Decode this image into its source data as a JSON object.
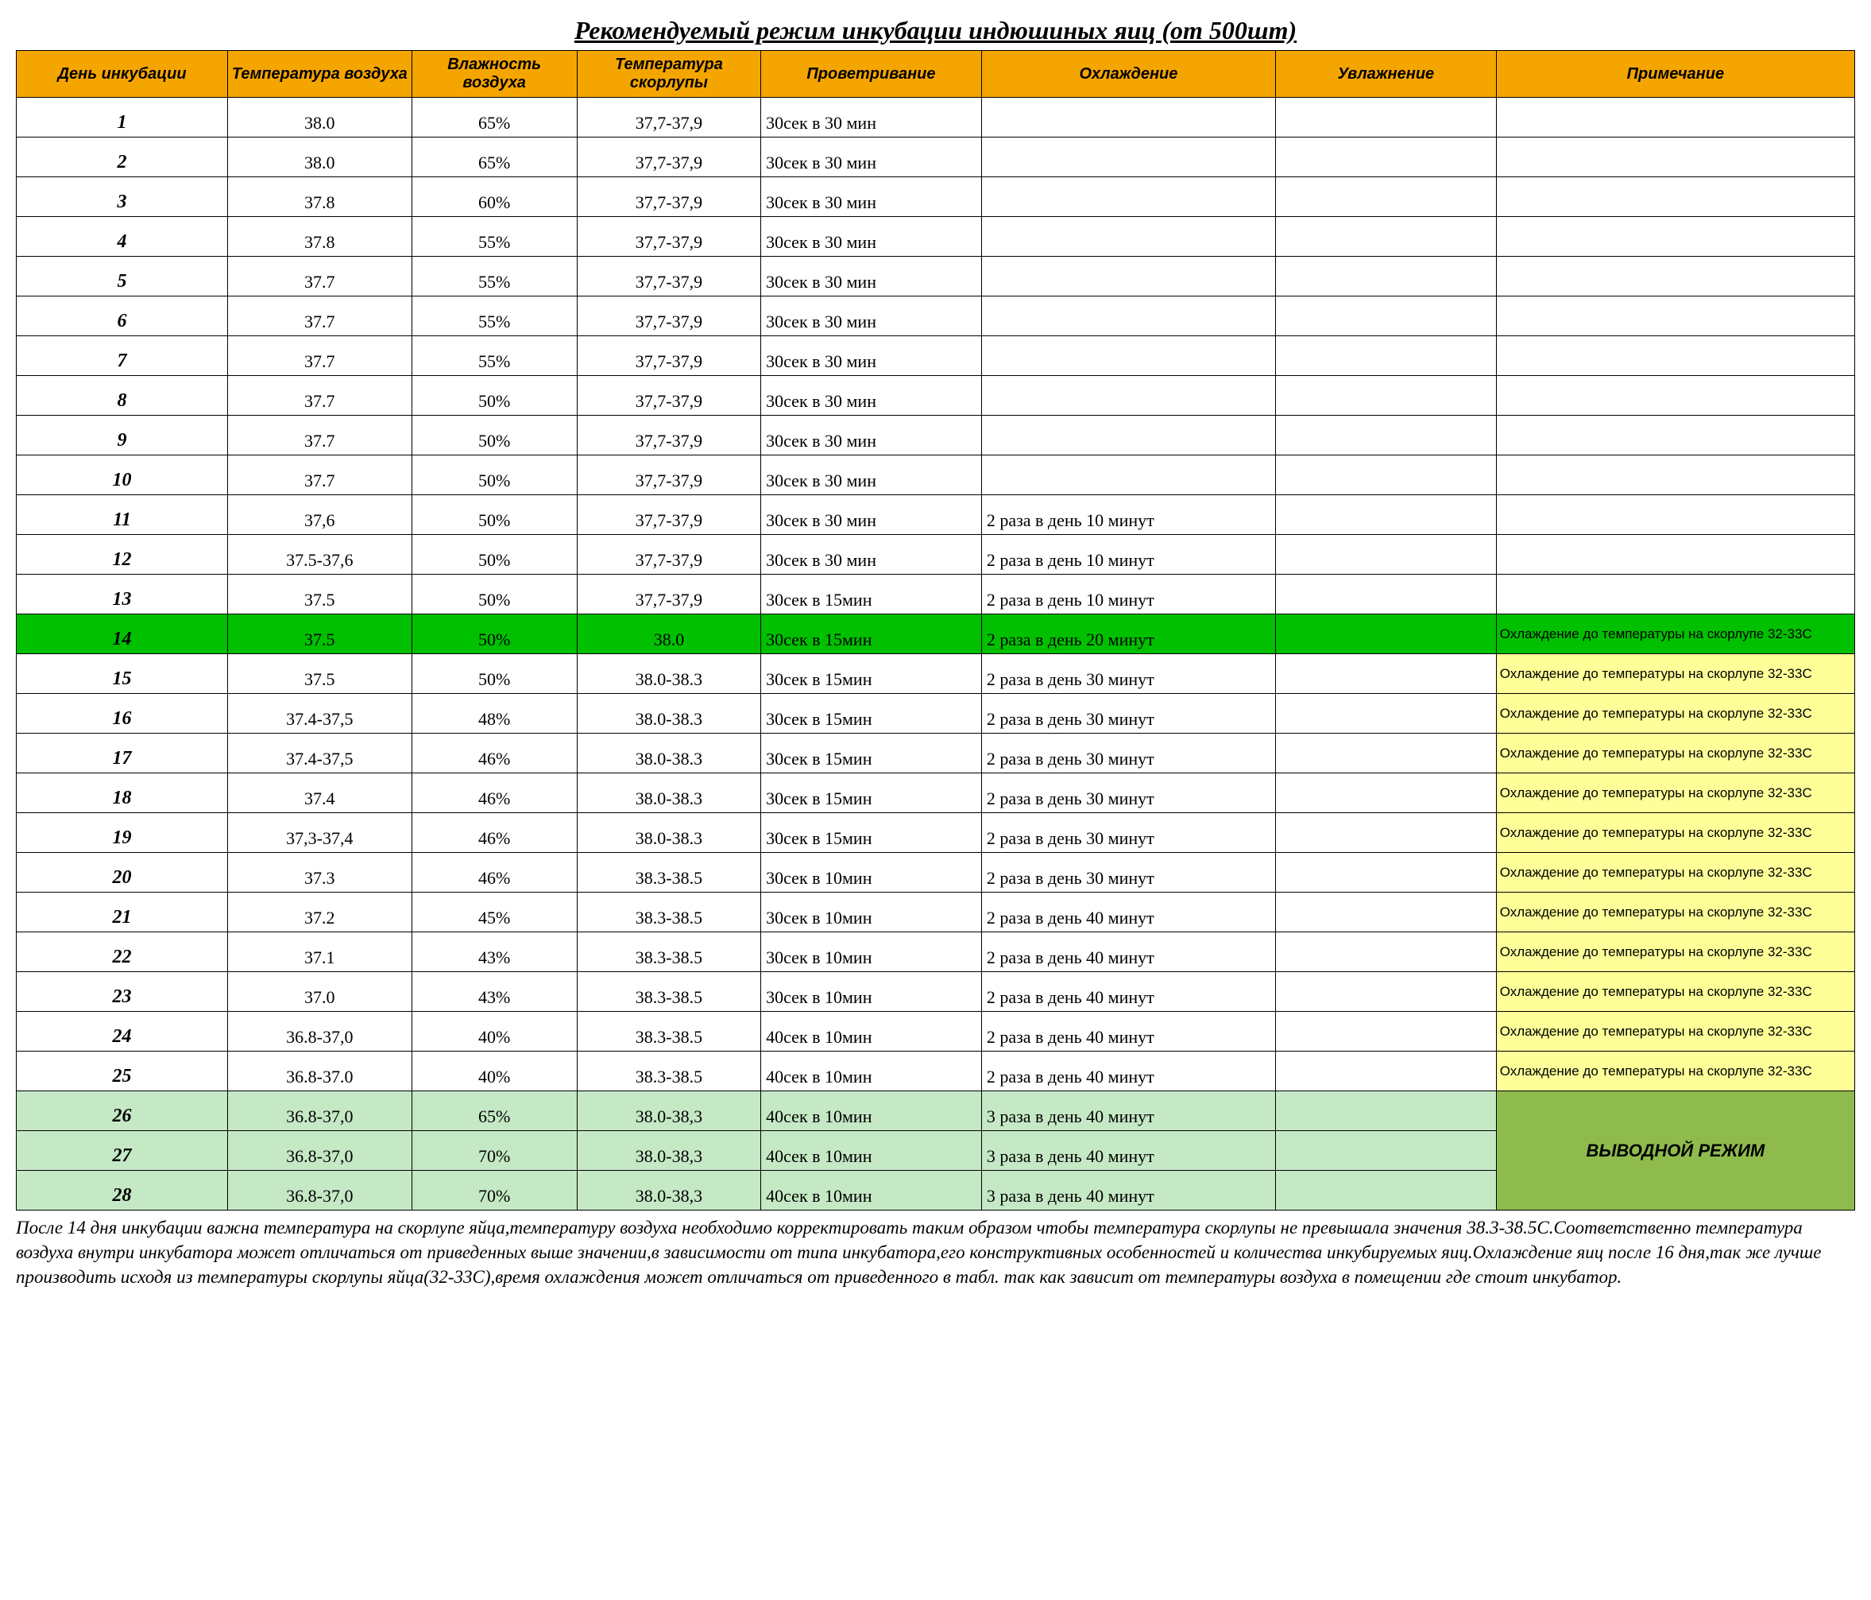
{
  "title": "Рекомендуемый режим инкубации индюшиных яиц (от 500шт)",
  "colors": {
    "header_bg": "#f5a500",
    "row_green_bright": "#00c000",
    "note_yellow": "#ffff99",
    "row_green_pale": "#c5e8c5",
    "note_green_mid": "#8fbb4d",
    "border": "#000000"
  },
  "col_widths_pct": [
    11.5,
    10,
    9,
    10,
    12,
    16,
    12,
    19.5
  ],
  "columns": [
    "День инкубации",
    "Температура воздуха",
    "Влажность воздуха",
    "Температура скорлупы",
    "Проветривание",
    "Охлаждение",
    "Увлажнение",
    "Примечание"
  ],
  "rows": [
    {
      "day": "1",
      "temp": "38.0",
      "hum": "65%",
      "shell": "37,7-37,9",
      "vent": "30сек в 30 мин",
      "cool": "",
      "humid": "",
      "note": "",
      "row_bg": "",
      "note_bg": ""
    },
    {
      "day": "2",
      "temp": "38.0",
      "hum": "65%",
      "shell": "37,7-37,9",
      "vent": "30сек в 30 мин",
      "cool": "",
      "humid": "",
      "note": "",
      "row_bg": "",
      "note_bg": ""
    },
    {
      "day": "3",
      "temp": "37.8",
      "hum": "60%",
      "shell": "37,7-37,9",
      "vent": "30сек в 30 мин",
      "cool": "",
      "humid": "",
      "note": "",
      "row_bg": "",
      "note_bg": ""
    },
    {
      "day": "4",
      "temp": "37.8",
      "hum": "55%",
      "shell": "37,7-37,9",
      "vent": "30сек в 30 мин",
      "cool": "",
      "humid": "",
      "note": "",
      "row_bg": "",
      "note_bg": ""
    },
    {
      "day": "5",
      "temp": "37.7",
      "hum": "55%",
      "shell": "37,7-37,9",
      "vent": "30сек в 30 мин",
      "cool": "",
      "humid": "",
      "note": "",
      "row_bg": "",
      "note_bg": ""
    },
    {
      "day": "6",
      "temp": "37.7",
      "hum": "55%",
      "shell": "37,7-37,9",
      "vent": "30сек в 30 мин",
      "cool": "",
      "humid": "",
      "note": "",
      "row_bg": "",
      "note_bg": ""
    },
    {
      "day": "7",
      "temp": "37.7",
      "hum": "55%",
      "shell": "37,7-37,9",
      "vent": "30сек в 30 мин",
      "cool": "",
      "humid": "",
      "note": "",
      "row_bg": "",
      "note_bg": ""
    },
    {
      "day": "8",
      "temp": "37.7",
      "hum": "50%",
      "shell": "37,7-37,9",
      "vent": "30сек в 30 мин",
      "cool": "",
      "humid": "",
      "note": "",
      "row_bg": "",
      "note_bg": ""
    },
    {
      "day": "9",
      "temp": "37.7",
      "hum": "50%",
      "shell": "37,7-37,9",
      "vent": "30сек в 30 мин",
      "cool": "",
      "humid": "",
      "note": "",
      "row_bg": "",
      "note_bg": ""
    },
    {
      "day": "10",
      "temp": "37.7",
      "hum": "50%",
      "shell": "37,7-37,9",
      "vent": "30сек в 30 мин",
      "cool": "",
      "humid": "",
      "note": "",
      "row_bg": "",
      "note_bg": ""
    },
    {
      "day": "11",
      "temp": "37,6",
      "hum": "50%",
      "shell": "37,7-37,9",
      "vent": "30сек в 30 мин",
      "cool": "2 раза в день 10 минут",
      "humid": "",
      "note": "",
      "row_bg": "",
      "note_bg": ""
    },
    {
      "day": "12",
      "temp": "37.5-37,6",
      "hum": "50%",
      "shell": "37,7-37,9",
      "vent": "30сек в 30 мин",
      "cool": "2 раза в день 10 минут",
      "humid": "",
      "note": "",
      "row_bg": "",
      "note_bg": ""
    },
    {
      "day": "13",
      "temp": "37.5",
      "hum": "50%",
      "shell": "37,7-37,9",
      "vent": "30сек в 15мин",
      "cool": "2 раза в день 10 минут",
      "humid": "",
      "note": "",
      "row_bg": "",
      "note_bg": ""
    },
    {
      "day": "14",
      "temp": "37.5",
      "hum": "50%",
      "shell": "38.0",
      "vent": "30сек в 15мин",
      "cool": "2 раза в день 20 минут",
      "humid": "",
      "note": "Охлаждение до температуры на скорлупе 32-33С",
      "row_bg": "#00c000",
      "note_bg": "#00c000"
    },
    {
      "day": "15",
      "temp": "37.5",
      "hum": "50%",
      "shell": "38.0-38.3",
      "vent": "30сек в 15мин",
      "cool": "2 раза в день 30 минут",
      "humid": "",
      "note": "Охлаждение до температуры на скорлупе 32-33С",
      "row_bg": "",
      "note_bg": "#ffff99"
    },
    {
      "day": "16",
      "temp": "37.4-37,5",
      "hum": "48%",
      "shell": "38.0-38.3",
      "vent": "30сек в 15мин",
      "cool": "2 раза в день 30 минут",
      "humid": "",
      "note": "Охлаждение до температуры на скорлупе 32-33С",
      "row_bg": "",
      "note_bg": "#ffff99"
    },
    {
      "day": "17",
      "temp": "37.4-37,5",
      "hum": "46%",
      "shell": "38.0-38.3",
      "vent": "30сек в 15мин",
      "cool": "2 раза в день 30 минут",
      "humid": "",
      "note": "Охлаждение до температуры на скорлупе 32-33С",
      "row_bg": "",
      "note_bg": "#ffff99"
    },
    {
      "day": "18",
      "temp": "37.4",
      "hum": "46%",
      "shell": "38.0-38.3",
      "vent": "30сек в 15мин",
      "cool": "2 раза в день 30 минут",
      "humid": "",
      "note": "Охлаждение до температуры на скорлупе 32-33С",
      "row_bg": "",
      "note_bg": "#ffff99"
    },
    {
      "day": "19",
      "temp": "37,3-37,4",
      "hum": "46%",
      "shell": "38.0-38.3",
      "vent": "30сек в 15мин",
      "cool": "2 раза в день 30 минут",
      "humid": "",
      "note": "Охлаждение до температуры на скорлупе 32-33С",
      "row_bg": "",
      "note_bg": "#ffff99"
    },
    {
      "day": "20",
      "temp": "37.3",
      "hum": "46%",
      "shell": "38.3-38.5",
      "vent": "30сек в 10мин",
      "cool": "2 раза в день 30 минут",
      "humid": "",
      "note": "Охлаждение до температуры на скорлупе 32-33С",
      "row_bg": "",
      "note_bg": "#ffff99"
    },
    {
      "day": "21",
      "temp": "37.2",
      "hum": "45%",
      "shell": "38.3-38.5",
      "vent": "30сек в 10мин",
      "cool": "2 раза в день 40 минут",
      "humid": "",
      "note": "Охлаждение до температуры на скорлупе 32-33С",
      "row_bg": "",
      "note_bg": "#ffff99"
    },
    {
      "day": "22",
      "temp": "37.1",
      "hum": "43%",
      "shell": "38.3-38.5",
      "vent": "30сек в 10мин",
      "cool": "2 раза в день 40 минут",
      "humid": "",
      "note": "Охлаждение до температуры на скорлупе 32-33С",
      "row_bg": "",
      "note_bg": "#ffff99"
    },
    {
      "day": "23",
      "temp": "37.0",
      "hum": "43%",
      "shell": "38.3-38.5",
      "vent": "30сек в 10мин",
      "cool": "2 раза в день 40 минут",
      "humid": "",
      "note": "Охлаждение до температуры на скорлупе 32-33С",
      "row_bg": "",
      "note_bg": "#ffff99"
    },
    {
      "day": "24",
      "temp": "36.8-37,0",
      "hum": "40%",
      "shell": "38.3-38.5",
      "vent": "40сек в 10мин",
      "cool": "2 раза в день 40 минут",
      "humid": "",
      "note": "Охлаждение до температуры на скорлупе 32-33С",
      "row_bg": "",
      "note_bg": "#ffff99"
    },
    {
      "day": "25",
      "temp": "36.8-37.0",
      "hum": "40%",
      "shell": "38.3-38.5",
      "vent": "40сек в 10мин",
      "cool": "2 раза в день 40 минут",
      "humid": "",
      "note": "Охлаждение до температуры на скорлупе 32-33С",
      "row_bg": "",
      "note_bg": "#ffff99"
    },
    {
      "day": "26",
      "temp": "36.8-37,0",
      "hum": "65%",
      "shell": "38.0-38,3",
      "vent": "40сек в 10мин",
      "cool": "3 раза в день 40 минут",
      "humid": "",
      "note": "merged",
      "row_bg": "#c5e8c5",
      "note_bg": "#8fbb4d"
    },
    {
      "day": "27",
      "temp": "36.8-37,0",
      "hum": "70%",
      "shell": "38.0-38,3",
      "vent": "40сек в 10мин",
      "cool": "3 раза в день 40 минут",
      "humid": "",
      "note": "skip",
      "row_bg": "#c5e8c5",
      "note_bg": ""
    },
    {
      "day": "28",
      "temp": "36.8-37,0",
      "hum": "70%",
      "shell": "38.0-38,3",
      "vent": "40сек в 10мин",
      "cool": "3 раза в день 40 минут",
      "humid": "",
      "note": "skip",
      "row_bg": "#c5e8c5",
      "note_bg": ""
    }
  ],
  "merged_note_text": "ВЫВОДНОЙ РЕЖИМ",
  "merged_note_rowspan": 3,
  "footer": "После 14 дня инкубации важна температура на скорлупе яйца,температуру воздуха необходимо корректировать таким образом чтобы температура скорлупы не превышала значения 38.3-38.5С.Соответственно температура воздуха внутри инкубатора может отличаться от приведенных выше значении,в зависимости от типа инкубатора,его конструктивных особенностей и количества инкубируемых яиц.Охлаждение яиц после 16 дня,так же лучше производить исходя из температуры скорлупы яйца(32-33С),время охлаждения может отличаться от приведенного в табл. так как зависит от температуры воздуха в помещении где стоит инкубатор."
}
